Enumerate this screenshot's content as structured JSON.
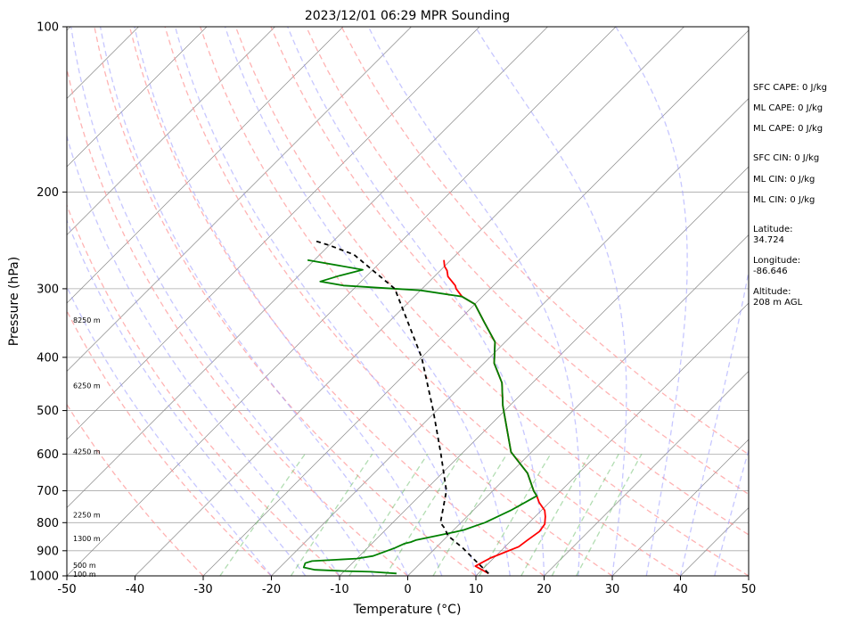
{
  "chart_data": {
    "type": "skew-t log-p sounding",
    "title": "2023/12/01 06:29 MPR Sounding",
    "xlabel": "Temperature (°C)",
    "ylabel": "Pressure (hPa)",
    "xlim": [
      -50,
      50
    ],
    "ylim": [
      1000,
      100
    ],
    "yscale": "log",
    "grid": true,
    "x_ticks": [
      "-50",
      "-40",
      "-30",
      "-20",
      "-10",
      "0",
      "10",
      "20",
      "30",
      "40",
      "50"
    ],
    "y_ticks": [
      {
        "p": 100,
        "label": "100"
      },
      {
        "p": 200,
        "label": "200"
      },
      {
        "p": 300,
        "label": "300"
      },
      {
        "p": 400,
        "label": "400"
      },
      {
        "p": 500,
        "label": "500"
      },
      {
        "p": 600,
        "label": "600"
      },
      {
        "p": 700,
        "label": "700"
      },
      {
        "p": 800,
        "label": "800"
      },
      {
        "p": 900,
        "label": "900"
      },
      {
        "p": 1000,
        "label": "1000"
      }
    ],
    "height_labels": [
      {
        "p": 342,
        "label": "8250 m"
      },
      {
        "p": 450,
        "label": "6250 m"
      },
      {
        "p": 594,
        "label": "4250 m"
      },
      {
        "p": 774,
        "label": "2250 m"
      },
      {
        "p": 855,
        "label": "1300 m"
      },
      {
        "p": 956,
        "label": "500 m"
      },
      {
        "p": 993,
        "label": "100 m"
      }
    ],
    "series": [
      {
        "color": "#ff0000",
        "points": [
          [
            11.5,
            990
          ],
          [
            8.5,
            960
          ],
          [
            9.5,
            928
          ],
          [
            12.0,
            885
          ],
          [
            12.3,
            862
          ],
          [
            12.8,
            830
          ],
          [
            12.5,
            805
          ],
          [
            11.5,
            780
          ],
          [
            10.5,
            760
          ],
          [
            8.5,
            735
          ],
          [
            7.2,
            715
          ],
          [
            6.0,
            700
          ],
          [
            2.5,
            650
          ],
          [
            -3.0,
            595
          ],
          [
            -7.0,
            540
          ],
          [
            -11.0,
            490
          ],
          [
            -14.5,
            445
          ],
          [
            -18.5,
            410
          ],
          [
            -21.5,
            375
          ],
          [
            -26.0,
            345
          ],
          [
            -30.0,
            320
          ],
          [
            -33.0,
            310
          ],
          [
            -35.0,
            300
          ],
          [
            -35.6,
            296
          ],
          [
            -38.0,
            285
          ],
          [
            -39.0,
            278
          ],
          [
            -40.0,
            273
          ],
          [
            -41.0,
            266
          ]
        ]
      },
      {
        "color": "#008000",
        "points": [
          [
            -2.0,
            990
          ],
          [
            -6.0,
            983
          ],
          [
            -10.0,
            980
          ],
          [
            -14.5,
            975
          ],
          [
            -16.5,
            965
          ],
          [
            -16.9,
            948
          ],
          [
            -16.2,
            940
          ],
          [
            -10.0,
            930
          ],
          [
            -8.0,
            920
          ],
          [
            -6.0,
            890
          ],
          [
            -5.2,
            873
          ],
          [
            -4.5,
            868
          ],
          [
            -4.0,
            860
          ],
          [
            0.0,
            835
          ],
          [
            1.5,
            825
          ],
          [
            2.5,
            812
          ],
          [
            3.5,
            800
          ],
          [
            5.5,
            760
          ],
          [
            7.2,
            715
          ],
          [
            6.0,
            700
          ],
          [
            2.5,
            650
          ],
          [
            -3.0,
            595
          ],
          [
            -7.0,
            540
          ],
          [
            -11.0,
            490
          ],
          [
            -14.5,
            445
          ],
          [
            -18.5,
            410
          ],
          [
            -21.5,
            375
          ],
          [
            -26.0,
            345
          ],
          [
            -30.0,
            320
          ],
          [
            -33.0,
            310
          ],
          [
            -40.0,
            302
          ],
          [
            -52.0,
            296
          ],
          [
            -56.0,
            291
          ],
          [
            -54.0,
            284
          ],
          [
            -51.5,
            277
          ],
          [
            -61.0,
            266
          ]
        ]
      },
      {
        "color": "#000000",
        "linestyle": "dashed",
        "points": [
          [
            11.5,
            990
          ],
          [
            8.2,
            945
          ],
          [
            4.0,
            890
          ],
          [
            0.0,
            845
          ],
          [
            -1.5,
            820
          ],
          [
            -3.0,
            800
          ],
          [
            -6.8,
            700
          ],
          [
            -13.0,
            600
          ],
          [
            -20.5,
            500
          ],
          [
            -30.0,
            400
          ],
          [
            -44.0,
            300
          ],
          [
            -55.0,
            260
          ],
          [
            -60.0,
            250
          ],
          [
            -63.0,
            245
          ]
        ]
      }
    ],
    "background_lines": [
      {
        "kind": "isotherms",
        "color": "#888888",
        "style": "solid",
        "values_c": [
          -160,
          -150,
          -140,
          -130,
          -120,
          -110,
          -100,
          -90,
          -80,
          -70,
          -60,
          -50,
          -40,
          -30,
          -20,
          -10,
          0,
          10,
          20,
          30,
          40,
          50
        ]
      },
      {
        "kind": "dry adiabats",
        "color": "#ff9999",
        "style": "dashed",
        "values_c_at_1000hpa": [
          -30,
          -20,
          -10,
          0,
          10,
          20,
          30,
          40,
          50,
          60,
          70,
          80
        ]
      },
      {
        "kind": "moist adiabats",
        "color": "#9999ff",
        "style": "dashed",
        "values_c_at_1000hpa": [
          -20,
          -15,
          -10,
          -5,
          0,
          5,
          10,
          15,
          20,
          25,
          30,
          35,
          40,
          45
        ]
      },
      {
        "kind": "mixing ratio",
        "color": "#66bb66",
        "style": "dashed",
        "values_g_per_kg": [
          0.4,
          1,
          2,
          3,
          5,
          8,
          12,
          16,
          20
        ]
      }
    ]
  },
  "info_panel": {
    "sfc_cape": "SFC CAPE: 0 J/kg",
    "ml_cape_1": "ML CAPE: 0 J/kg",
    "ml_cape_2": "ML CAPE: 0 J/kg",
    "sfc_cin": "SFC CIN: 0 J/kg",
    "ml_cin_1": "ML CIN: 0 J/kg",
    "ml_cin_2": "ML CIN: 0 J/kg",
    "latitude": "Latitude:\n34.724",
    "longitude": "Longitude:\n-86.646",
    "altitude": "Altitude:\n208 m AGL"
  }
}
